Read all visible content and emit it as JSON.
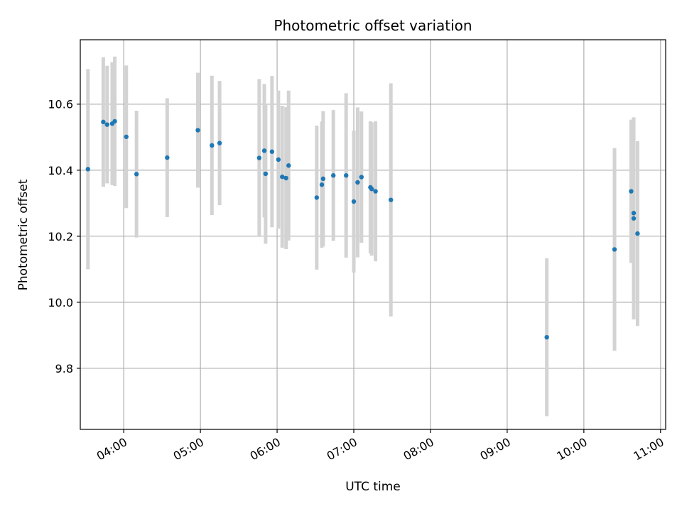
{
  "chart_data": {
    "type": "scatter",
    "title": "Photometric offset variation",
    "xlabel": "UTC time",
    "ylabel": "Photometric offset",
    "x_unit": "UTC hours",
    "xlim": [
      "03:26",
      "11:04"
    ],
    "ylim": [
      9.615,
      10.795
    ],
    "x_ticks": [
      "04:00",
      "05:00",
      "06:00",
      "07:00",
      "08:00",
      "09:00",
      "10:00",
      "11:00"
    ],
    "y_ticks": [
      "9.8",
      "10.0",
      "10.2",
      "10.4",
      "10.6"
    ],
    "grid": true,
    "legend": "none",
    "colors": {
      "point": "#1f77b4",
      "errorbar": "#d3d3d3",
      "grid": "#b0b0b0"
    },
    "points": [
      {
        "x": "03:32",
        "y": 10.403,
        "low": 10.1,
        "high": 10.706
      },
      {
        "x": "03:44",
        "y": 10.546,
        "low": 10.35,
        "high": 10.742
      },
      {
        "x": "03:47",
        "y": 10.538,
        "low": 10.36,
        "high": 10.716
      },
      {
        "x": "03:51",
        "y": 10.541,
        "low": 10.355,
        "high": 10.727
      },
      {
        "x": "03:53",
        "y": 10.548,
        "low": 10.352,
        "high": 10.744
      },
      {
        "x": "04:02",
        "y": 10.501,
        "low": 10.285,
        "high": 10.717
      },
      {
        "x": "04:10",
        "y": 10.388,
        "low": 10.196,
        "high": 10.58
      },
      {
        "x": "04:34",
        "y": 10.438,
        "low": 10.258,
        "high": 10.618
      },
      {
        "x": "04:58",
        "y": 10.521,
        "low": 10.347,
        "high": 10.695
      },
      {
        "x": "05:09",
        "y": 10.475,
        "low": 10.264,
        "high": 10.686
      },
      {
        "x": "05:15",
        "y": 10.482,
        "low": 10.294,
        "high": 10.67
      },
      {
        "x": "05:46",
        "y": 10.437,
        "low": 10.198,
        "high": 10.676
      },
      {
        "x": "05:50",
        "y": 10.459,
        "low": 10.257,
        "high": 10.661
      },
      {
        "x": "05:51",
        "y": 10.389,
        "low": 10.177,
        "high": 10.601
      },
      {
        "x": "05:56",
        "y": 10.456,
        "low": 10.227,
        "high": 10.685
      },
      {
        "x": "06:01",
        "y": 10.432,
        "low": 10.223,
        "high": 10.641
      },
      {
        "x": "06:04",
        "y": 10.38,
        "low": 10.165,
        "high": 10.595
      },
      {
        "x": "06:07",
        "y": 10.376,
        "low": 10.161,
        "high": 10.591
      },
      {
        "x": "06:09",
        "y": 10.414,
        "low": 10.187,
        "high": 10.641
      },
      {
        "x": "06:31",
        "y": 10.317,
        "low": 10.099,
        "high": 10.535
      },
      {
        "x": "06:35",
        "y": 10.356,
        "low": 10.165,
        "high": 10.547
      },
      {
        "x": "06:36",
        "y": 10.374,
        "low": 10.169,
        "high": 10.579
      },
      {
        "x": "06:44",
        "y": 10.384,
        "low": 10.186,
        "high": 10.582
      },
      {
        "x": "06:54",
        "y": 10.384,
        "low": 10.135,
        "high": 10.633
      },
      {
        "x": "07:00",
        "y": 10.305,
        "low": 10.09,
        "high": 10.52
      },
      {
        "x": "07:03",
        "y": 10.363,
        "low": 10.136,
        "high": 10.59
      },
      {
        "x": "07:06",
        "y": 10.379,
        "low": 10.18,
        "high": 10.578
      },
      {
        "x": "07:13",
        "y": 10.348,
        "low": 10.148,
        "high": 10.548
      },
      {
        "x": "07:14",
        "y": 10.343,
        "low": 10.141,
        "high": 10.545
      },
      {
        "x": "07:17",
        "y": 10.336,
        "low": 10.124,
        "high": 10.548
      },
      {
        "x": "07:29",
        "y": 10.31,
        "low": 9.957,
        "high": 10.663
      },
      {
        "x": "09:31",
        "y": 9.894,
        "low": 9.655,
        "high": 10.133
      },
      {
        "x": "10:24",
        "y": 10.16,
        "low": 9.853,
        "high": 10.467
      },
      {
        "x": "10:37",
        "y": 10.336,
        "low": 10.119,
        "high": 10.553
      },
      {
        "x": "10:39",
        "y": 10.27,
        "low": 9.988,
        "high": 10.552
      },
      {
        "x": "10:39",
        "y": 10.254,
        "low": 9.948,
        "high": 10.56
      },
      {
        "x": "10:42",
        "y": 10.208,
        "low": 9.928,
        "high": 10.488
      }
    ]
  }
}
